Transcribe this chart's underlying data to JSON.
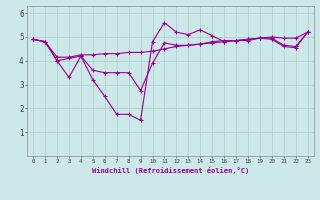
{
  "xlabel": "Windchill (Refroidissement éolien,°C)",
  "bg_color": "#cce8e8",
  "line_color": "#990099",
  "grid_color": "#aacccc",
  "xlim": [
    -0.5,
    23.5
  ],
  "ylim": [
    0,
    6.3
  ],
  "xtick_labels": [
    "0",
    "1",
    "2",
    "3",
    "4",
    "5",
    "6",
    "7",
    "8",
    "9",
    "10",
    "11",
    "12",
    "13",
    "14",
    "15",
    "16",
    "17",
    "18",
    "19",
    "20",
    "21",
    "22",
    "23"
  ],
  "yticks": [
    1,
    2,
    3,
    4,
    5,
    6
  ],
  "series1_x": [
    0,
    1,
    2,
    3,
    4,
    5,
    6,
    7,
    8,
    9,
    10,
    11,
    12,
    13,
    14,
    15,
    16,
    17,
    18,
    19,
    20,
    21,
    22,
    23
  ],
  "series1_y": [
    4.9,
    4.8,
    4.0,
    3.3,
    4.2,
    3.2,
    2.5,
    1.75,
    1.75,
    1.5,
    4.8,
    5.6,
    5.2,
    5.1,
    5.3,
    5.05,
    4.8,
    4.85,
    4.85,
    4.95,
    4.9,
    4.6,
    4.55,
    5.2
  ],
  "series2_x": [
    0,
    1,
    2,
    3,
    4,
    5,
    6,
    7,
    8,
    9,
    10,
    11,
    12,
    13,
    14,
    15,
    16,
    17,
    18,
    19,
    20,
    21,
    22,
    23
  ],
  "series2_y": [
    4.9,
    4.8,
    4.0,
    4.1,
    4.2,
    3.6,
    3.5,
    3.5,
    3.5,
    2.75,
    3.9,
    4.75,
    4.65,
    4.65,
    4.7,
    4.8,
    4.85,
    4.85,
    4.9,
    4.95,
    4.95,
    4.65,
    4.6,
    5.2
  ],
  "series3_x": [
    0,
    1,
    2,
    3,
    4,
    5,
    6,
    7,
    8,
    9,
    10,
    11,
    12,
    13,
    14,
    15,
    16,
    17,
    18,
    19,
    20,
    21,
    22,
    23
  ],
  "series3_y": [
    4.9,
    4.8,
    4.15,
    4.15,
    4.25,
    4.25,
    4.3,
    4.3,
    4.35,
    4.35,
    4.4,
    4.5,
    4.6,
    4.65,
    4.7,
    4.75,
    4.8,
    4.85,
    4.9,
    4.95,
    5.0,
    4.95,
    4.95,
    5.2
  ]
}
